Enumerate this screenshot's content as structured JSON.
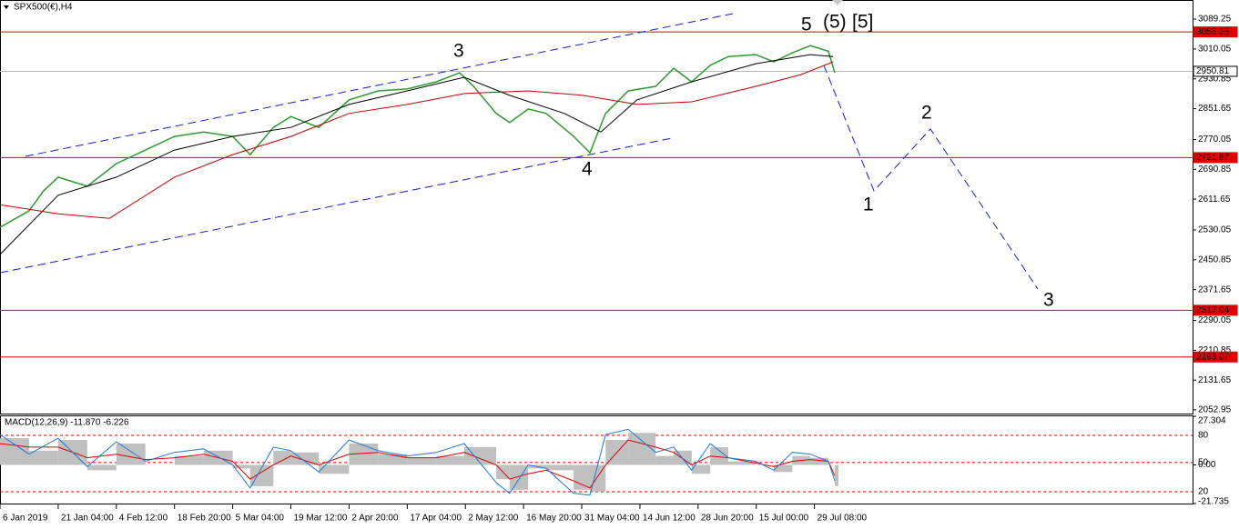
{
  "chart_data": [
    {
      "type": "line",
      "title": "SPX500(€),H4",
      "xlim": [
        0,
        20.5
      ],
      "xticks": [
        {
          "value": 0,
          "label": "6 Jan 2019"
        },
        {
          "value": 1,
          "label": "21 Jan 04:00"
        },
        {
          "value": 2,
          "label": "4 Feb 12:00"
        },
        {
          "value": 3,
          "label": "18 Feb 20:00"
        },
        {
          "value": 4,
          "label": "5 Mar 04:00"
        },
        {
          "value": 5,
          "label": "19 Mar 12:00"
        },
        {
          "value": 6,
          "label": "2 Apr 20:00"
        },
        {
          "value": 7,
          "label": "17 Apr 04:00"
        },
        {
          "value": 8,
          "label": "2 May 12:00"
        },
        {
          "value": 9,
          "label": "16 May 20:00"
        },
        {
          "value": 10,
          "label": "31 May 04:00"
        },
        {
          "value": 11,
          "label": "14 Jun 12:00"
        },
        {
          "value": 12,
          "label": "28 Jun 20:00"
        },
        {
          "value": 13,
          "label": "15 Jul 00:00"
        },
        {
          "value": 14,
          "label": "29 Jul 08:00"
        }
      ],
      "ylim": [
        2043,
        3140
      ],
      "yticks": [
        3089.25,
        3010.05,
        2930.85,
        2851.65,
        2770.05,
        2690.85,
        2611.65,
        2530.05,
        2450.85,
        2371.65,
        2290.05,
        2210.85,
        2131.65,
        2052.95
      ],
      "hlines": [
        {
          "value": 3055.35,
          "color": "#e00000"
        },
        {
          "value": 2950.81,
          "color": "#b8b8b8"
        },
        {
          "value": 2721.87,
          "color": "#e00000"
        },
        {
          "value": 2317.04,
          "color": "#e00000"
        },
        {
          "value": 2193.07,
          "color": "#e00000"
        }
      ],
      "series": [
        {
          "color": "#2e9a2e",
          "x": [
            0,
            0.5,
            0.75,
            1,
            1.5,
            2,
            2.5,
            3,
            3.5,
            4,
            4.3,
            4.7,
            5,
            5.48,
            6,
            6.5,
            7,
            7.5,
            7.9,
            8.14,
            8.53,
            8.76,
            9.08,
            9.39,
            9.86,
            10.14,
            10.41,
            10.8,
            11.27,
            11.58,
            11.89,
            12.21,
            12.52,
            12.99,
            13.3,
            13.62,
            13.93,
            14.24,
            14.35
          ],
          "values": [
            2537,
            2581,
            2634,
            2670,
            2646,
            2706,
            2742,
            2778,
            2790,
            2778,
            2730,
            2802,
            2831,
            2802,
            2875,
            2899,
            2904,
            2923,
            2947,
            2911,
            2839,
            2815,
            2851,
            2839,
            2778,
            2735,
            2839,
            2899,
            2911,
            2959,
            2923,
            2967,
            2990,
            2995,
            2976,
            3000,
            3019,
            3004,
            2947
          ]
        },
        {
          "color": "#000000",
          "x": [
            0,
            1,
            2,
            3,
            4,
            5,
            6,
            7,
            7.98,
            8.76,
            9.7,
            10.33,
            10.95,
            11.89,
            12.99,
            13.93,
            14.32
          ],
          "values": [
            2465,
            2622,
            2670,
            2742,
            2778,
            2802,
            2863,
            2899,
            2935,
            2887,
            2839,
            2790,
            2875,
            2923,
            2971,
            2995,
            2990
          ]
        },
        {
          "color": "#c00000",
          "x": [
            0,
            1,
            1.88,
            3,
            4,
            5,
            6,
            7,
            7.98,
            9.08,
            10.02,
            10.95,
            11.89,
            12.99,
            13.77,
            14.32
          ],
          "values": [
            2597,
            2573,
            2561,
            2670,
            2730,
            2778,
            2839,
            2863,
            2892,
            2899,
            2887,
            2863,
            2870,
            2911,
            2942,
            2976
          ]
        }
      ],
      "annotations": [
        {
          "text": "3",
          "color": "#1a1acc"
        },
        {
          "text": "4",
          "color": "#1a1acc"
        },
        {
          "text": "5",
          "color": "#1a1acc"
        },
        {
          "text": "(5)",
          "color": "#e00000"
        },
        {
          "text": "[5]",
          "color": "#000000"
        },
        {
          "text": "1",
          "color": "#1a1acc"
        },
        {
          "text": "2",
          "color": "#1a1acc"
        },
        {
          "text": "3",
          "color": "#1a1acc"
        }
      ]
    },
    {
      "type": "macd",
      "title": "MACD(12,26,9) -11.870 -6.226",
      "xlim": [
        0,
        20.5
      ],
      "ylim": [
        -21.735,
        27.304
      ],
      "yticks": [
        27.304,
        {
          "value": 16.6,
          "label": "80"
        },
        {
          "value": 1.3,
          "label": "50"
        },
        {
          "value": 0,
          "label": "0.00"
        },
        {
          "value": -15.1,
          "label": "20"
        },
        -21.735
      ],
      "x": [
        0,
        0.5,
        1,
        1.5,
        2,
        2.5,
        3,
        3.5,
        4,
        4.3,
        4.7,
        5,
        5.48,
        6,
        6.5,
        7,
        7.5,
        7.98,
        8.53,
        8.76,
        9.08,
        9.39,
        9.86,
        10.14,
        10.41,
        10.8,
        11.27,
        11.58,
        11.89,
        12.21,
        12.52,
        12.99,
        13.3,
        13.62,
        13.93,
        14.24,
        14.35
      ],
      "series": [
        {
          "color": "#c0c0c0",
          "values": [
            15,
            8,
            14,
            -3,
            12,
            0,
            5,
            8,
            -2,
            -12,
            8,
            7,
            -5,
            12,
            6,
            4,
            5,
            10,
            -8,
            -14,
            -2,
            -3,
            -14,
            -15,
            14,
            18,
            5,
            8,
            -5,
            10,
            2,
            0,
            -4,
            5,
            4,
            0,
            -11.87
          ]
        },
        {
          "color": "#e00000",
          "values": [
            12,
            10,
            10,
            4,
            6,
            3,
            4,
            6,
            2,
            -8,
            0,
            5,
            0,
            6,
            7,
            4,
            4,
            7,
            0,
            -8,
            -5,
            -3,
            -9,
            -13,
            0,
            14,
            10,
            7,
            0,
            5,
            4,
            1,
            -1,
            2,
            3,
            2,
            -6.226
          ]
        },
        {
          "color": "#1e78d8",
          "values": [
            17,
            6,
            15,
            -1,
            13,
            2,
            7,
            9,
            0,
            -13,
            10,
            8,
            -4,
            14,
            8,
            5,
            7,
            12,
            -10,
            -16,
            0,
            -2,
            -16,
            -17,
            17,
            20,
            7,
            10,
            -3,
            12,
            4,
            2,
            -3,
            7,
            6,
            2,
            -9
          ]
        }
      ]
    }
  ]
}
